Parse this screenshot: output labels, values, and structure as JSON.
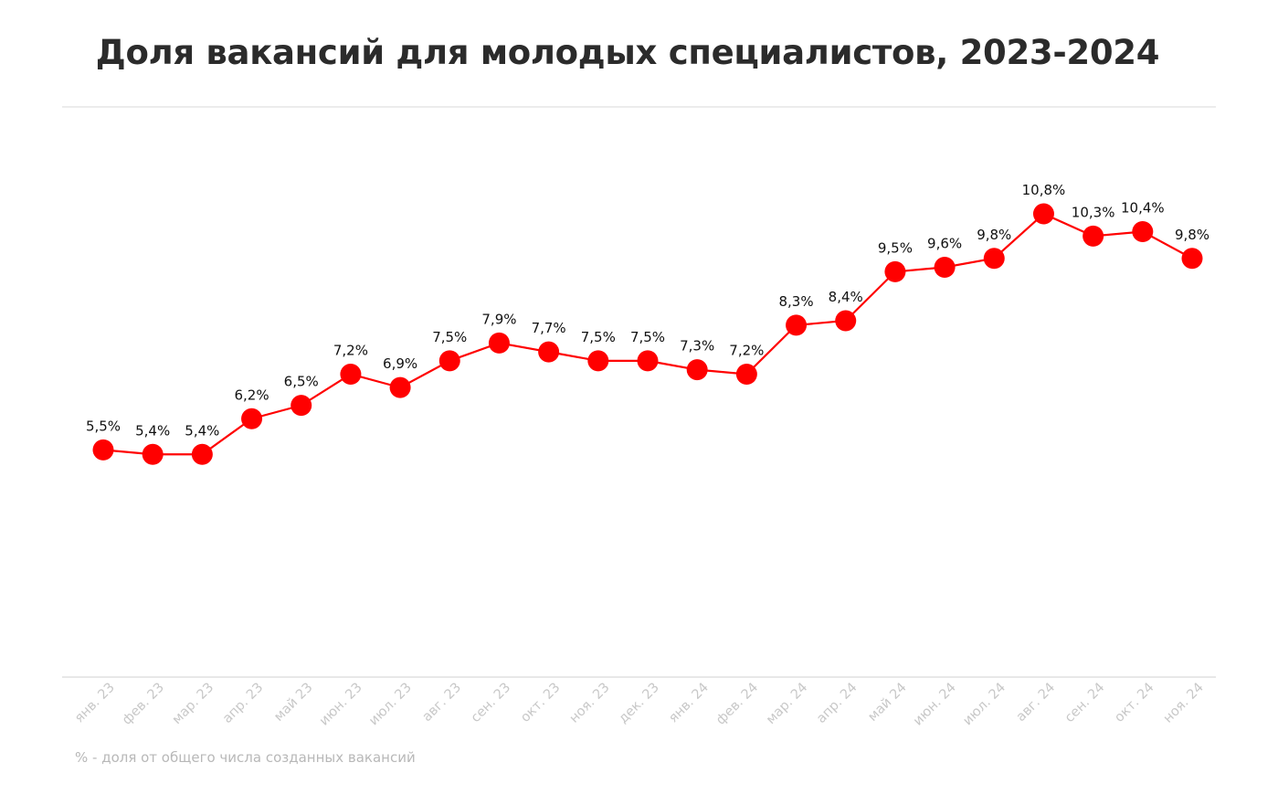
{
  "chart_data": {
    "type": "line",
    "title": "Доля вакансий для молодых специалистов, 2023-2024",
    "xlabel": "",
    "ylabel": "",
    "categories": [
      "янв. 23",
      "фев. 23",
      "мар. 23",
      "апр. 23",
      "май 23",
      "июн. 23",
      "июл. 23",
      "авг. 23",
      "сен. 23",
      "окт. 23",
      "ноя. 23",
      "дек. 23",
      "янв. 24",
      "фев. 24",
      "мар. 24",
      "апр. 24",
      "май 24",
      "июн. 24",
      "июл. 24",
      "авг. 24",
      "сен. 24",
      "окт. 24",
      "ноя. 24"
    ],
    "series": [
      {
        "name": "Доля вакансий",
        "values": [
          5.5,
          5.4,
          5.4,
          6.2,
          6.5,
          7.2,
          6.9,
          7.5,
          7.9,
          7.7,
          7.5,
          7.5,
          7.3,
          7.2,
          8.3,
          8.4,
          9.5,
          9.6,
          9.8,
          10.8,
          10.3,
          10.4,
          9.8
        ],
        "labels": [
          "5,5%",
          "5,4%",
          "5,4%",
          "6,2%",
          "6,5%",
          "7,2%",
          "6,9%",
          "7,5%",
          "7,9%",
          "7,7%",
          "7,5%",
          "7,5%",
          "7,3%",
          "7,2%",
          "8,3%",
          "8,4%",
          "9,5%",
          "9,6%",
          "9,8%",
          "10,8%",
          "10,3%",
          "10,4%",
          "9,8%"
        ],
        "color": "#ff0000"
      }
    ],
    "ylim": [
      0.4,
      13.2
    ],
    "grid": false,
    "legend": "none",
    "footnote": "% - доля от общего числа созданных вакансий"
  }
}
